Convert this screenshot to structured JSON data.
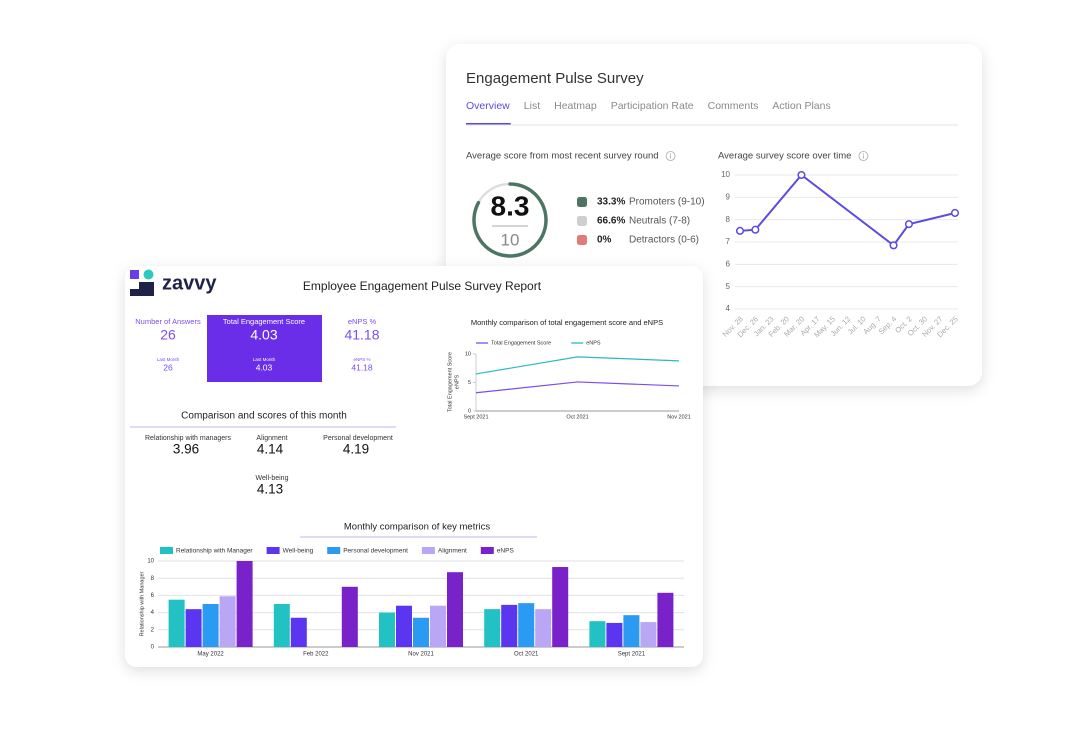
{
  "survey_card": {
    "title": "Engagement Pulse Survey",
    "tabs": [
      "Overview",
      "List",
      "Heatmap",
      "Participation Rate",
      "Comments",
      "Action Plans"
    ],
    "score_panel": {
      "title": "Average score from most recent survey round",
      "score": 8.3,
      "max": 10,
      "color": "#4e7563",
      "breakdown": [
        {
          "percent": "33.3%",
          "label": "Promoters (9-10)",
          "color": "#4e7563"
        },
        {
          "percent": "66.6%",
          "label": "Neutrals (7-8)",
          "color": "#cfcfcf"
        },
        {
          "percent": "0%",
          "label": "Detractors (0-6)",
          "color": "#e07b7b"
        }
      ]
    }
  },
  "report_card": {
    "logo_text": "zavvy",
    "title": "Employee Engagement Pulse Survey Report",
    "kpis": [
      {
        "label": "Number of Answers",
        "value": 26,
        "sub_label": "Last Month",
        "sub_value": 26
      },
      {
        "label": "Total Engagement Score",
        "value": 4.03,
        "sub_label": "Last Month",
        "sub_value": 4.03
      },
      {
        "label": "eNPS %",
        "value": 41.18,
        "sub_label": "eNPS %",
        "sub_value": 41.18
      }
    ],
    "comparison": {
      "title": "Comparison and scores of this month",
      "items": [
        {
          "label": "Relationship with managers",
          "value": 3.96
        },
        {
          "label": "Alignment",
          "value": 4.14
        },
        {
          "label": "Personal development",
          "value": 4.19
        },
        {
          "label": "Well-being",
          "value": 4.13
        }
      ]
    }
  },
  "chart_data": [
    {
      "type": "line",
      "title": "Average survey score over time",
      "categories": [
        "Nov. 28",
        "Dec. 26",
        "Jan. 23",
        "Feb. 20",
        "Mar. 20",
        "Apr. 17",
        "May. 15",
        "Jun. 12",
        "Jul. 10",
        "Aug. 7",
        "Sep. 4",
        "Oct. 2",
        "Oct. 30",
        "Nov. 27",
        "Dec. 25"
      ],
      "series": [
        {
          "color": "#5b4ce0",
          "x": [
            "Nov. 28",
            "Dec. 26",
            "Mar. 20",
            "Sep. 4",
            "Oct. 2",
            "Dec. 25"
          ],
          "values": [
            7.5,
            7.55,
            10,
            6.85,
            7.8,
            8.3
          ]
        }
      ],
      "ylim": [
        4,
        10
      ],
      "yticks": [
        4,
        5,
        6,
        7,
        8,
        9,
        10
      ],
      "grid": true
    },
    {
      "type": "line",
      "title": "Monthly comparison of total engagement score and eNPS",
      "categories": [
        "Sept 2021",
        "Oct 2021",
        "Nov 2021"
      ],
      "series": [
        {
          "name": "Total Engagement Score",
          "color": "#7b4df0",
          "values": [
            3.2,
            5.1,
            4.4
          ]
        },
        {
          "name": "eNPS",
          "color": "#2bb8c4",
          "values": [
            6.5,
            9.5,
            8.8
          ]
        }
      ],
      "ylabel": [
        "Total Engagement Score",
        "eNPS"
      ],
      "ylim": [
        0,
        10
      ],
      "yticks": [
        0,
        5,
        10
      ]
    },
    {
      "type": "bar",
      "title": "Monthly comparison of key metrics",
      "categories": [
        "May 2022",
        "Feb 2022",
        "Nov 2021",
        "Oct 2021",
        "Sept 2021"
      ],
      "series": [
        {
          "name": "Relationship with Manager",
          "color": "#22c1c3",
          "values": [
            5.5,
            5.0,
            4.0,
            4.4,
            3.0
          ]
        },
        {
          "name": "Well-being",
          "color": "#5b35f0",
          "values": [
            4.4,
            3.4,
            4.8,
            4.9,
            2.8
          ]
        },
        {
          "name": "Personal development",
          "color": "#2b9af3",
          "values": [
            5.0,
            null,
            3.4,
            5.1,
            3.7
          ]
        },
        {
          "name": "Alignment",
          "color": "#b9a6f5",
          "values": [
            5.9,
            null,
            4.8,
            4.4,
            2.9
          ]
        },
        {
          "name": "eNPS",
          "color": "#7a22c9",
          "values": [
            10,
            7.0,
            8.7,
            9.3,
            6.3
          ]
        }
      ],
      "ylabel": "Relationship with Manager",
      "ylim": [
        0,
        10
      ],
      "yticks": [
        0,
        2,
        4,
        6,
        8,
        10
      ],
      "grid": true
    }
  ]
}
